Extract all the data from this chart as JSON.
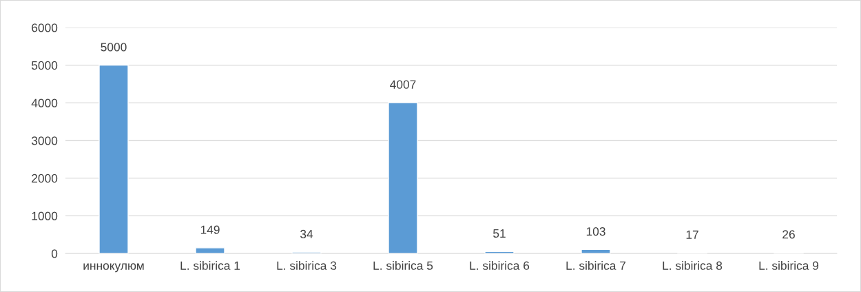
{
  "chart_data": {
    "type": "bar",
    "categories": [
      "иннокулюм",
      "L. sibirica 1",
      "L. sibirica 3",
      "L. sibirica 5",
      "L. sibirica 6",
      "L. sibirica 7",
      "L. sibirica 8",
      "L. sibirica 9"
    ],
    "values": [
      5000,
      149,
      34,
      4007,
      51,
      103,
      17,
      26
    ],
    "color": "#5b9bd5",
    "ylim": [
      0,
      6000
    ],
    "yticks": [
      0,
      1000,
      2000,
      3000,
      4000,
      5000,
      6000
    ],
    "grid": "y",
    "data_labels": true
  }
}
